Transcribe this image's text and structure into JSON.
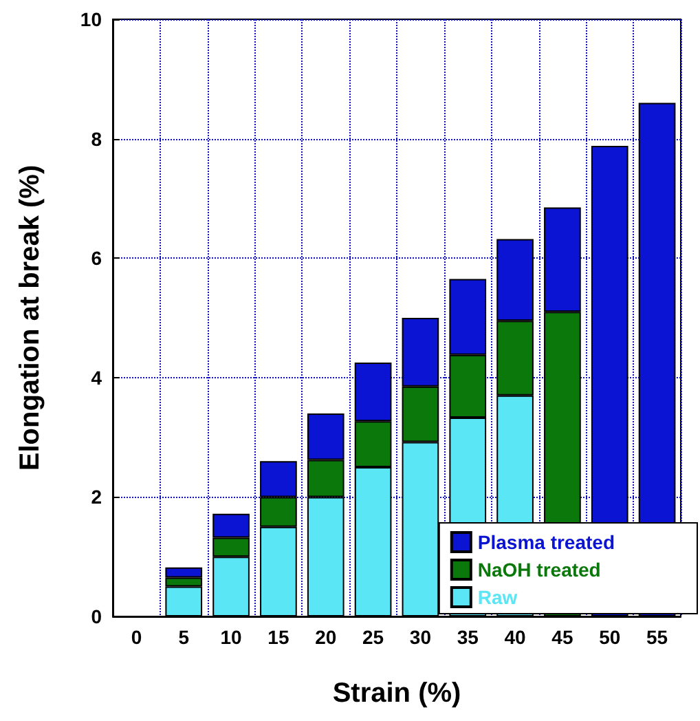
{
  "chart_data": {
    "type": "bar",
    "stacked": true,
    "xlabel": "Strain (%)",
    "ylabel": "Elongation at break (%)",
    "categories": [
      "0",
      "5",
      "10",
      "15",
      "20",
      "25",
      "30",
      "35",
      "40",
      "45",
      "50",
      "55"
    ],
    "series": [
      {
        "name": "Raw",
        "color": "#5ae6f5",
        "values": [
          null,
          0.5,
          1.0,
          1.5,
          2.0,
          2.5,
          2.92,
          3.33,
          3.7,
          null,
          null,
          null
        ]
      },
      {
        "name": "NaOH treated",
        "color": "#0a780a",
        "values": [
          null,
          0.15,
          0.32,
          0.5,
          0.62,
          0.77,
          0.93,
          1.05,
          1.25,
          5.1,
          null,
          null
        ]
      },
      {
        "name": "Plasma treated",
        "color": "#0a14d2",
        "values": [
          null,
          0.17,
          0.4,
          0.6,
          0.78,
          0.98,
          1.15,
          1.27,
          1.37,
          1.75,
          7.88,
          8.6
        ]
      }
    ],
    "ylim": [
      0,
      10
    ],
    "yticks": [
      0,
      2,
      4,
      6,
      8,
      10
    ],
    "grid": true,
    "legend": "bottom right"
  }
}
